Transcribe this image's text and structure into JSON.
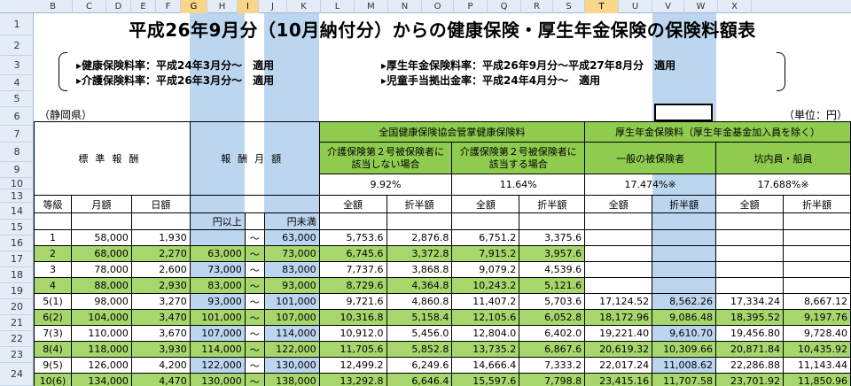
{
  "column_headers": [
    "B",
    "C",
    "D",
    "E",
    "F",
    "G",
    "H",
    "I",
    "J",
    "K",
    "L",
    "M",
    "N",
    "O",
    "P",
    "Q",
    "R",
    "S",
    "T",
    "U",
    "V",
    "W",
    "X"
  ],
  "selected_columns": [
    "G",
    "I",
    "T"
  ],
  "row_headers": [
    "1",
    "2",
    "3",
    "4",
    "5",
    "6",
    "7",
    "8",
    "9",
    "10",
    "13",
    "14",
    "15",
    "16",
    "17",
    "18",
    "19",
    "20",
    "21",
    "22",
    "23",
    "24"
  ],
  "title": "平成26年9月分（10月納付分）からの健康保険・厚生年金保険の保険料額表",
  "rates": {
    "health": "▸健康保険料率：平成24年3月分～　適用",
    "care": "▸介護保険料率：平成26年3月分～　適用",
    "pension": "▸厚生年金保険料率：平成26年9月分～平成27年8月分　適用",
    "child": "▸児童手当拠出金率：平成24年4月分～　適用"
  },
  "prefecture": "（静岡県）",
  "unit": "（単位：円）",
  "headers": {
    "standard_remuneration": "標準報酬",
    "remuneration_monthly": "報酬月額",
    "kyokai": "全国健康保険協会管掌健康保険料",
    "not_care": "介護保険第２号被保険者に該当しない場合",
    "care": "介護保険第２号被保険者に該当する場合",
    "pension": "厚生年金保険料（厚生年金基金加入員を除く）",
    "general": "一般の被保険者",
    "miner": "坑内員・船員",
    "rate_not_care": "9.92%",
    "rate_care": "11.64%",
    "rate_general": "17.474%※",
    "rate_miner": "17.688%※",
    "grade": "等級",
    "monthly": "月額",
    "daily": "日額",
    "from": "円以上",
    "to": "円未満",
    "total": "全額",
    "half": "折半額"
  },
  "rows": [
    {
      "grade": "1",
      "monthly": "58,000",
      "daily": "1,930",
      "from": "",
      "to": "63,000",
      "a": "5,753.6",
      "b": "2,876.8",
      "c": "6,751.2",
      "d": "3,375.6",
      "e": "",
      "f": "",
      "g": "",
      "h": "",
      "hl": false
    },
    {
      "grade": "2",
      "monthly": "68,000",
      "daily": "2,270",
      "from": "63,000",
      "to": "73,000",
      "a": "6,745.6",
      "b": "3,372.8",
      "c": "7,915.2",
      "d": "3,957.6",
      "e": "",
      "f": "",
      "g": "",
      "h": "",
      "hl": true
    },
    {
      "grade": "3",
      "monthly": "78,000",
      "daily": "2,600",
      "from": "73,000",
      "to": "83,000",
      "a": "7,737.6",
      "b": "3,868.8",
      "c": "9,079.2",
      "d": "4,539.6",
      "e": "",
      "f": "",
      "g": "",
      "h": "",
      "hl": false
    },
    {
      "grade": "4",
      "monthly": "88,000",
      "daily": "2,930",
      "from": "83,000",
      "to": "93,000",
      "a": "8,729.6",
      "b": "4,364.8",
      "c": "10,243.2",
      "d": "5,121.6",
      "e": "",
      "f": "",
      "g": "",
      "h": "",
      "hl": true
    },
    {
      "grade": "5(1)",
      "monthly": "98,000",
      "daily": "3,270",
      "from": "93,000",
      "to": "101,000",
      "a": "9,721.6",
      "b": "4,860.8",
      "c": "11,407.2",
      "d": "5,703.6",
      "e": "17,124.52",
      "f": "8,562.26",
      "g": "17,334.24",
      "h": "8,667.12",
      "hl": false
    },
    {
      "grade": "6(2)",
      "monthly": "104,000",
      "daily": "3,470",
      "from": "101,000",
      "to": "107,000",
      "a": "10,316.8",
      "b": "5,158.4",
      "c": "12,105.6",
      "d": "6,052.8",
      "e": "18,172.96",
      "f": "9,086.48",
      "g": "18,395.52",
      "h": "9,197.76",
      "hl": true
    },
    {
      "grade": "7(3)",
      "monthly": "110,000",
      "daily": "3,670",
      "from": "107,000",
      "to": "114,000",
      "a": "10,912.0",
      "b": "5,456.0",
      "c": "12,804.0",
      "d": "6,402.0",
      "e": "19,221.40",
      "f": "9,610.70",
      "g": "19,456.80",
      "h": "9,728.40",
      "hl": false
    },
    {
      "grade": "8(4)",
      "monthly": "118,000",
      "daily": "3,930",
      "from": "114,000",
      "to": "122,000",
      "a": "11,705.6",
      "b": "5,852.8",
      "c": "13,735.2",
      "d": "6,867.6",
      "e": "20,619.32",
      "f": "10,309.66",
      "g": "20,871.84",
      "h": "10,435.92",
      "hl": true
    },
    {
      "grade": "9(5)",
      "monthly": "126,000",
      "daily": "4,200",
      "from": "122,000",
      "to": "130,000",
      "a": "12,499.2",
      "b": "6,249.6",
      "c": "14,666.4",
      "d": "7,333.2",
      "e": "22,017.24",
      "f": "11,008.62",
      "g": "22,286.88",
      "h": "11,143.44",
      "hl": false
    },
    {
      "grade": "10(6)",
      "monthly": "134,000",
      "daily": "4,470",
      "from": "130,000",
      "to": "138,000",
      "a": "13,292.8",
      "b": "6,646.4",
      "c": "15,597.6",
      "d": "7,798.8",
      "e": "23,415.16",
      "f": "11,707.58",
      "g": "23,701.92",
      "h": "11,850.96",
      "hl": true
    }
  ],
  "tilde": "～",
  "colors": {
    "green": "#8ecb4e",
    "selected_col": "#bcd6f0",
    "header_bg": "#e4ecf7"
  }
}
